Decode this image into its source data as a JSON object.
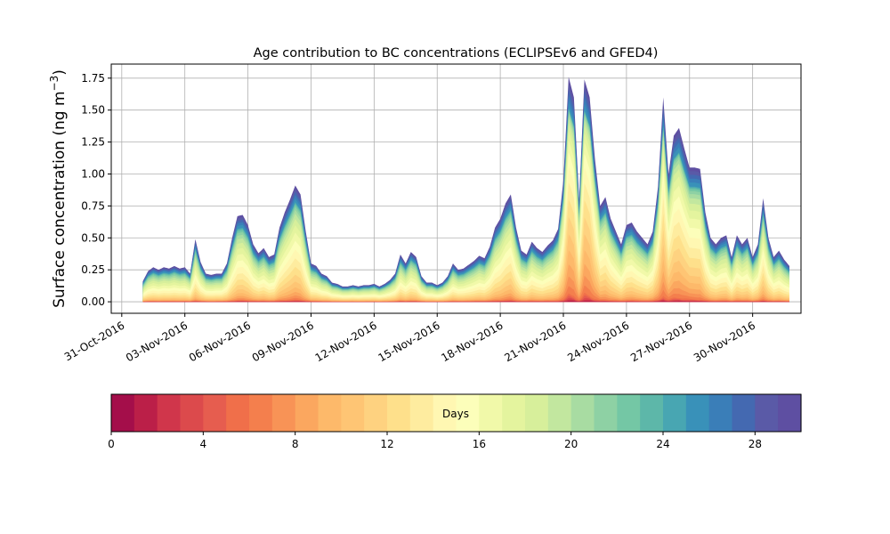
{
  "chart_data": {
    "type": "area",
    "stacked": true,
    "title": "Age contribution to BC concentrations (ECLIPSEv6 and GFED4)",
    "xlabel": "",
    "ylabel_main": "Surface concentration (ng m",
    "ylabel_sup": "−3",
    "ylabel_close": ")",
    "ylim": [
      -0.09,
      1.86
    ],
    "grid": true,
    "x_start": "01-Nov-2016",
    "x_end": "01-Dec-2016",
    "x_step_days": 0.25,
    "x_ticks": [
      {
        "day": -1,
        "label": "31-Oct-2016"
      },
      {
        "day": 2,
        "label": "03-Nov-2016"
      },
      {
        "day": 5,
        "label": "06-Nov-2016"
      },
      {
        "day": 8,
        "label": "09-Nov-2016"
      },
      {
        "day": 11,
        "label": "12-Nov-2016"
      },
      {
        "day": 14,
        "label": "15-Nov-2016"
      },
      {
        "day": 17,
        "label": "18-Nov-2016"
      },
      {
        "day": 20,
        "label": "21-Nov-2016"
      },
      {
        "day": 23,
        "label": "24-Nov-2016"
      },
      {
        "day": 26,
        "label": "27-Nov-2016"
      },
      {
        "day": 29,
        "label": "30-Nov-2016"
      }
    ],
    "x_range_days": [
      -1.5,
      31.3
    ],
    "y_ticks": [
      0.0,
      0.25,
      0.5,
      0.75,
      1.0,
      1.25,
      1.5,
      1.75
    ],
    "y_tick_labels": [
      "0.00",
      "0.25",
      "0.50",
      "0.75",
      "1.00",
      "1.25",
      "1.50",
      "1.75"
    ],
    "total_profile_keypoints": [
      [
        0.0,
        0.16
      ],
      [
        0.25,
        0.24
      ],
      [
        0.5,
        0.27
      ],
      [
        0.75,
        0.25
      ],
      [
        1.0,
        0.27
      ],
      [
        1.25,
        0.26
      ],
      [
        1.5,
        0.28
      ],
      [
        1.75,
        0.26
      ],
      [
        2.0,
        0.27
      ],
      [
        2.25,
        0.22
      ],
      [
        2.5,
        0.49
      ],
      [
        2.75,
        0.31
      ],
      [
        3.0,
        0.22
      ],
      [
        3.25,
        0.21
      ],
      [
        3.5,
        0.22
      ],
      [
        3.75,
        0.22
      ],
      [
        4.0,
        0.3
      ],
      [
        4.25,
        0.5
      ],
      [
        4.5,
        0.67
      ],
      [
        4.75,
        0.68
      ],
      [
        5.0,
        0.6
      ],
      [
        5.25,
        0.45
      ],
      [
        5.5,
        0.38
      ],
      [
        5.75,
        0.42
      ],
      [
        6.0,
        0.35
      ],
      [
        6.25,
        0.37
      ],
      [
        6.5,
        0.58
      ],
      [
        6.75,
        0.7
      ],
      [
        7.0,
        0.8
      ],
      [
        7.25,
        0.91
      ],
      [
        7.5,
        0.84
      ],
      [
        7.75,
        0.55
      ],
      [
        8.0,
        0.3
      ],
      [
        8.25,
        0.28
      ],
      [
        8.5,
        0.22
      ],
      [
        8.75,
        0.2
      ],
      [
        9.0,
        0.15
      ],
      [
        9.25,
        0.14
      ],
      [
        9.5,
        0.12
      ],
      [
        9.75,
        0.12
      ],
      [
        10.0,
        0.13
      ],
      [
        10.25,
        0.12
      ],
      [
        10.5,
        0.13
      ],
      [
        10.75,
        0.13
      ],
      [
        11.0,
        0.14
      ],
      [
        11.25,
        0.12
      ],
      [
        11.5,
        0.14
      ],
      [
        11.75,
        0.17
      ],
      [
        12.0,
        0.22
      ],
      [
        12.25,
        0.37
      ],
      [
        12.5,
        0.3
      ],
      [
        12.75,
        0.39
      ],
      [
        13.0,
        0.35
      ],
      [
        13.25,
        0.2
      ],
      [
        13.5,
        0.15
      ],
      [
        13.75,
        0.15
      ],
      [
        14.0,
        0.13
      ],
      [
        14.25,
        0.15
      ],
      [
        14.5,
        0.2
      ],
      [
        14.75,
        0.3
      ],
      [
        15.0,
        0.25
      ],
      [
        15.25,
        0.26
      ],
      [
        15.5,
        0.29
      ],
      [
        15.75,
        0.32
      ],
      [
        16.0,
        0.36
      ],
      [
        16.25,
        0.34
      ],
      [
        16.5,
        0.43
      ],
      [
        16.75,
        0.58
      ],
      [
        17.0,
        0.65
      ],
      [
        17.25,
        0.77
      ],
      [
        17.5,
        0.84
      ],
      [
        17.75,
        0.58
      ],
      [
        18.0,
        0.4
      ],
      [
        18.25,
        0.37
      ],
      [
        18.5,
        0.47
      ],
      [
        18.75,
        0.42
      ],
      [
        19.0,
        0.39
      ],
      [
        19.25,
        0.44
      ],
      [
        19.5,
        0.48
      ],
      [
        19.75,
        0.57
      ],
      [
        20.0,
        0.95
      ],
      [
        20.25,
        1.76
      ],
      [
        20.5,
        1.6
      ],
      [
        20.75,
        0.8
      ],
      [
        21.0,
        1.74
      ],
      [
        21.25,
        1.6
      ],
      [
        21.5,
        1.12
      ],
      [
        21.75,
        0.75
      ],
      [
        22.0,
        0.82
      ],
      [
        22.25,
        0.65
      ],
      [
        22.5,
        0.55
      ],
      [
        22.75,
        0.45
      ],
      [
        23.0,
        0.6
      ],
      [
        23.25,
        0.62
      ],
      [
        23.5,
        0.55
      ],
      [
        23.75,
        0.5
      ],
      [
        24.0,
        0.45
      ],
      [
        24.25,
        0.55
      ],
      [
        24.5,
        0.9
      ],
      [
        24.75,
        1.6
      ],
      [
        25.0,
        1.0
      ],
      [
        25.25,
        1.3
      ],
      [
        25.5,
        1.36
      ],
      [
        25.75,
        1.2
      ],
      [
        26.0,
        1.05
      ],
      [
        26.25,
        1.05
      ],
      [
        26.5,
        1.04
      ],
      [
        26.75,
        0.7
      ],
      [
        27.0,
        0.5
      ],
      [
        27.25,
        0.45
      ],
      [
        27.5,
        0.5
      ],
      [
        27.75,
        0.52
      ],
      [
        28.0,
        0.35
      ],
      [
        28.25,
        0.52
      ],
      [
        28.5,
        0.45
      ],
      [
        28.75,
        0.5
      ],
      [
        29.0,
        0.35
      ],
      [
        29.25,
        0.45
      ],
      [
        29.5,
        0.81
      ],
      [
        29.75,
        0.5
      ],
      [
        30.0,
        0.35
      ],
      [
        30.25,
        0.4
      ],
      [
        30.5,
        0.33
      ],
      [
        30.75,
        0.28
      ]
    ],
    "colorbar": {
      "label": "Days",
      "range": [
        0,
        30
      ],
      "ticks": [
        0,
        4,
        8,
        12,
        16,
        20,
        24,
        28
      ],
      "tick_labels": [
        "0",
        "4",
        "8",
        "12",
        "16",
        "20",
        "24",
        "28"
      ],
      "colors": [
        "#a40e4a",
        "#bb1f48",
        "#d0364b",
        "#dc4a4c",
        "#e65d4f",
        "#f06f4a",
        "#f47f4d",
        "#f89356",
        "#fba75f",
        "#fdb96a",
        "#fec574",
        "#fed280",
        "#fee08b",
        "#feec9f",
        "#fff7b2",
        "#fcfeba",
        "#f1f9a9",
        "#e4f49e",
        "#d7ef9b",
        "#c2e79f",
        "#a8dca2",
        "#8ed1a4",
        "#74c7a5",
        "#5db7a9",
        "#48a6b2",
        "#3991b9",
        "#3a7eb8",
        "#4469b1",
        "#5a5aa7",
        "#5e4fa2"
      ]
    }
  }
}
